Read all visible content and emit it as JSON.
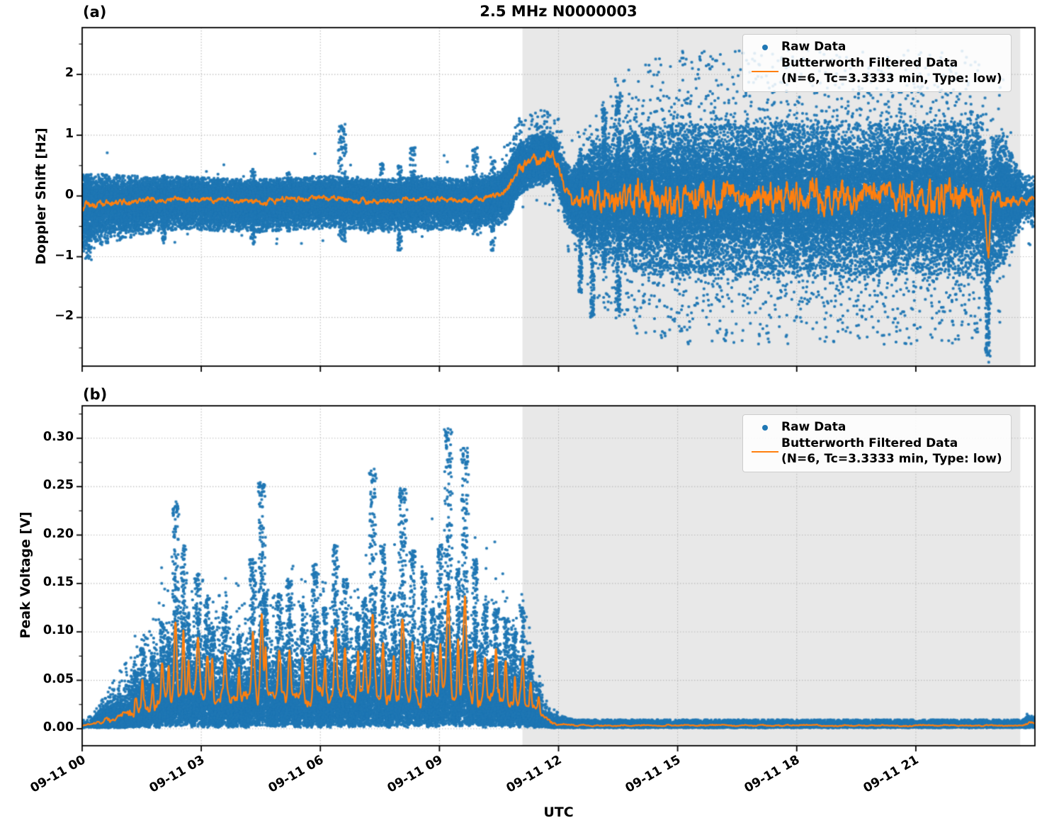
{
  "title": "2.5 MHz N0000003",
  "xlabel": "UTC",
  "colors": {
    "raw": "#1f77b4",
    "filtered": "#ff7f0e",
    "shade": "#e8e8e8",
    "grid": "#b8b8b8",
    "spine": "#000000"
  },
  "legend": {
    "raw_label": "Raw Data",
    "filtered_label_line1": "Butterworth Filtered Data",
    "filtered_label_line2": "(N=6, Tc=3.3333 min, Type: low)"
  },
  "chart_data": [
    {
      "panel": "(a)",
      "type": "scatter",
      "ylabel": "Doppler Shift [Hz]",
      "ylim": [
        -2.8,
        2.77
      ],
      "yticks": [
        2,
        1,
        0,
        -1,
        -2
      ],
      "ytick_labels": [
        "2",
        "1",
        "0",
        "−1",
        "−2"
      ],
      "y_minor_step": 0.5,
      "x_hours_range": [
        0,
        24
      ],
      "xtick_hours": [
        0,
        3,
        6,
        9,
        12,
        15,
        18,
        21
      ],
      "xtick_labels": [
        "09-11 00",
        "09-11 03",
        "09-11 06",
        "09-11 09",
        "09-11 12",
        "09-11 15",
        "09-11 18",
        "09-11 21"
      ],
      "shade_hours": [
        11.09,
        23.63
      ],
      "grid": true,
      "raw_model": {
        "center_pts": [
          [
            0,
            -0.17
          ],
          [
            0.4,
            -0.13
          ],
          [
            1.2,
            -0.09
          ],
          [
            2.5,
            -0.05
          ],
          [
            3.5,
            -0.08
          ],
          [
            4.5,
            -0.1
          ],
          [
            5.5,
            -0.05
          ],
          [
            6.5,
            -0.04
          ],
          [
            7.5,
            -0.1
          ],
          [
            8.5,
            -0.05
          ],
          [
            9.5,
            -0.08
          ],
          [
            10.3,
            -0.03
          ],
          [
            10.7,
            0.08
          ],
          [
            11.0,
            0.45
          ],
          [
            11.3,
            0.58
          ],
          [
            11.6,
            0.62
          ],
          [
            11.85,
            0.65
          ],
          [
            12.0,
            0.45
          ],
          [
            12.15,
            0.1
          ],
          [
            12.3,
            -0.04
          ],
          [
            13,
            -0.03
          ],
          [
            22.7,
            -0.02
          ],
          [
            22.78,
            -0.5
          ],
          [
            22.83,
            -0.9
          ],
          [
            22.9,
            -0.15
          ],
          [
            23.0,
            -0.04
          ],
          [
            24,
            -0.06
          ]
        ],
        "spread_pts": [
          [
            0,
            0.24
          ],
          [
            1,
            0.2
          ],
          [
            2,
            0.17
          ],
          [
            10.4,
            0.17
          ],
          [
            10.8,
            0.19
          ],
          [
            12.0,
            0.19
          ],
          [
            12.35,
            0.24
          ],
          [
            12.9,
            0.38
          ],
          [
            13.8,
            0.5
          ],
          [
            15,
            0.55
          ],
          [
            22.3,
            0.55
          ],
          [
            23.2,
            0.48
          ],
          [
            23.55,
            0.25
          ],
          [
            23.8,
            0.18
          ],
          [
            24,
            0.21
          ]
        ],
        "skew_pts": [
          [
            0,
            0.45
          ],
          [
            2,
            0.35
          ],
          [
            10.5,
            0.3
          ],
          [
            10.9,
            0.05
          ],
          [
            12.1,
            0.05
          ],
          [
            12.5,
            0.05
          ],
          [
            24,
            0.05
          ]
        ],
        "outlier_p_pts": [
          [
            0,
            0.002
          ],
          [
            10.4,
            0.002
          ],
          [
            11,
            0.004
          ],
          [
            12.2,
            0.01
          ],
          [
            12.8,
            0.028
          ],
          [
            13.8,
            0.04
          ],
          [
            22.4,
            0.04
          ],
          [
            23.2,
            0.012
          ],
          [
            23.6,
            0.004
          ],
          [
            24,
            0.003
          ]
        ],
        "bump_tail_p_pts": [
          [
            10.6,
            0
          ],
          [
            10.9,
            0.03
          ],
          [
            12.0,
            0.03
          ],
          [
            12.2,
            0
          ]
        ],
        "events": [
          {
            "t": 0.15,
            "up": 0.35,
            "down": -1.05,
            "w": 0.08
          },
          {
            "t": 2.05,
            "up": 0.35,
            "down": -0.8,
            "w": 0.05
          },
          {
            "t": 4.3,
            "up": 0.45,
            "down": -0.8,
            "w": 0.06
          },
          {
            "t": 5.2,
            "up": 0.4,
            "down": -0.6,
            "w": 0.05
          },
          {
            "t": 6.55,
            "up": 1.18,
            "down": -0.75,
            "w": 0.1
          },
          {
            "t": 7.55,
            "up": 0.55,
            "down": -0.5,
            "w": 0.05
          },
          {
            "t": 8.0,
            "up": 0.5,
            "down": -0.9,
            "w": 0.05
          },
          {
            "t": 8.33,
            "up": 0.8,
            "down": -0.6,
            "w": 0.07
          },
          {
            "t": 9.9,
            "up": 0.8,
            "down": -0.7,
            "w": 0.07
          },
          {
            "t": 10.35,
            "up": 0.6,
            "down": -0.9,
            "w": 0.06
          },
          {
            "t": 12.55,
            "up": 0.8,
            "down": -1.6,
            "w": 0.04
          },
          {
            "t": 12.85,
            "up": 0.9,
            "down": -2.0,
            "w": 0.05
          },
          {
            "t": 13.15,
            "up": 1.5,
            "down": -1.2,
            "w": 0.05
          },
          {
            "t": 13.5,
            "up": 1.7,
            "down": -1.9,
            "w": 0.06
          },
          {
            "t": 22.8,
            "up": 0.4,
            "down": -2.65,
            "w": 0.05
          }
        ]
      },
      "filtered_model": {
        "amp_pts": [
          [
            0,
            0.09
          ],
          [
            1,
            0.055
          ],
          [
            10.5,
            0.055
          ],
          [
            10.9,
            0.1
          ],
          [
            12.0,
            0.1
          ],
          [
            12.5,
            0.14
          ],
          [
            13,
            0.27
          ],
          [
            14,
            0.31
          ],
          [
            22.4,
            0.29
          ],
          [
            23.1,
            0.17
          ],
          [
            23.6,
            0.1
          ],
          [
            24,
            0.08
          ]
        ]
      },
      "density": {
        "n_base": 20000,
        "extras": [
          [
            0.0,
            11.09,
            16000
          ],
          [
            12.2,
            23.63,
            22000
          ],
          [
            10.6,
            12.2,
            2500
          ]
        ]
      }
    },
    {
      "panel": "(b)",
      "type": "scatter",
      "ylabel": "Peak Voltage [V]",
      "ylim": [
        -0.0176,
        0.3335
      ],
      "yticks": [
        0.3,
        0.25,
        0.2,
        0.15,
        0.1,
        0.05,
        0.0
      ],
      "ytick_labels": [
        "0.30",
        "0.25",
        "0.20",
        "0.15",
        "0.10",
        "0.05",
        "0.00"
      ],
      "y_minor_step": 0.025,
      "x_hours_range": [
        0,
        24
      ],
      "xtick_hours": [
        0,
        3,
        6,
        9,
        12,
        15,
        18,
        21
      ],
      "xtick_labels": [
        "09-11 00",
        "09-11 03",
        "09-11 06",
        "09-11 09",
        "09-11 12",
        "09-11 15",
        "09-11 18",
        "09-11 21"
      ],
      "shade_hours": [
        11.09,
        23.63
      ],
      "grid": true,
      "raw_model": {
        "base_pts": [
          [
            0,
            0.002
          ],
          [
            0.25,
            0.003
          ],
          [
            0.6,
            0.008
          ],
          [
            1.0,
            0.014
          ],
          [
            1.6,
            0.02
          ],
          [
            2.2,
            0.028
          ],
          [
            3,
            0.03
          ],
          [
            10.6,
            0.03
          ],
          [
            11.2,
            0.022
          ],
          [
            11.5,
            0.012
          ],
          [
            11.8,
            0.005
          ],
          [
            12.1,
            0.0028
          ],
          [
            12.4,
            0.002
          ],
          [
            23.7,
            0.002
          ],
          [
            23.85,
            0.004
          ],
          [
            24,
            0.0035
          ]
        ],
        "hw_pts": [
          [
            0,
            0.0012
          ],
          [
            0.4,
            0.004
          ],
          [
            1,
            0.009
          ],
          [
            1.8,
            0.016
          ],
          [
            2.5,
            0.02
          ],
          [
            10.6,
            0.02
          ],
          [
            11.2,
            0.014
          ],
          [
            11.6,
            0.007
          ],
          [
            12,
            0.002
          ],
          [
            12.4,
            0.0012
          ],
          [
            23.7,
            0.001
          ],
          [
            23.85,
            0.0022
          ],
          [
            24,
            0.002
          ]
        ],
        "mid_halo": {
          "t0": 1.2,
          "t1": 11.4,
          "p": 0.15
        },
        "events": [
          {
            "t": 1.35,
            "amp": 0.06,
            "w": 0.04
          },
          {
            "t": 1.52,
            "amp": 0.085,
            "w": 0.04
          },
          {
            "t": 1.78,
            "amp": 0.075,
            "w": 0.04
          },
          {
            "t": 2.02,
            "amp": 0.11,
            "w": 0.05
          },
          {
            "t": 2.18,
            "amp": 0.095,
            "w": 0.04
          },
          {
            "t": 2.35,
            "amp": 0.235,
            "w": 0.06
          },
          {
            "t": 2.55,
            "amp": 0.19,
            "w": 0.05
          },
          {
            "t": 2.68,
            "amp": 0.12,
            "w": 0.04
          },
          {
            "t": 2.92,
            "amp": 0.16,
            "w": 0.06
          },
          {
            "t": 3.15,
            "amp": 0.135,
            "w": 0.05
          },
          {
            "t": 3.28,
            "amp": 0.1,
            "w": 0.04
          },
          {
            "t": 3.6,
            "amp": 0.12,
            "w": 0.06
          },
          {
            "t": 3.95,
            "amp": 0.095,
            "w": 0.04
          },
          {
            "t": 4.3,
            "amp": 0.175,
            "w": 0.06
          },
          {
            "t": 4.52,
            "amp": 0.255,
            "w": 0.06
          },
          {
            "t": 4.62,
            "amp": 0.14,
            "w": 0.04
          },
          {
            "t": 4.97,
            "amp": 0.14,
            "w": 0.05
          },
          {
            "t": 5.22,
            "amp": 0.155,
            "w": 0.06
          },
          {
            "t": 5.55,
            "amp": 0.13,
            "w": 0.04
          },
          {
            "t": 5.85,
            "amp": 0.17,
            "w": 0.06
          },
          {
            "t": 6.12,
            "amp": 0.125,
            "w": 0.04
          },
          {
            "t": 6.38,
            "amp": 0.19,
            "w": 0.06
          },
          {
            "t": 6.62,
            "amp": 0.155,
            "w": 0.05
          },
          {
            "t": 6.95,
            "amp": 0.12,
            "w": 0.04
          },
          {
            "t": 7.12,
            "amp": 0.135,
            "w": 0.05
          },
          {
            "t": 7.32,
            "amp": 0.27,
            "w": 0.07
          },
          {
            "t": 7.58,
            "amp": 0.19,
            "w": 0.05
          },
          {
            "t": 7.85,
            "amp": 0.14,
            "w": 0.04
          },
          {
            "t": 8.07,
            "amp": 0.25,
            "w": 0.07
          },
          {
            "t": 8.32,
            "amp": 0.185,
            "w": 0.05
          },
          {
            "t": 8.6,
            "amp": 0.165,
            "w": 0.05
          },
          {
            "t": 8.83,
            "amp": 0.125,
            "w": 0.04
          },
          {
            "t": 9.02,
            "amp": 0.19,
            "w": 0.05
          },
          {
            "t": 9.22,
            "amp": 0.31,
            "w": 0.07
          },
          {
            "t": 9.47,
            "amp": 0.165,
            "w": 0.04
          },
          {
            "t": 9.64,
            "amp": 0.29,
            "w": 0.07
          },
          {
            "t": 9.9,
            "amp": 0.175,
            "w": 0.05
          },
          {
            "t": 10.15,
            "amp": 0.13,
            "w": 0.05
          },
          {
            "t": 10.42,
            "amp": 0.125,
            "w": 0.05
          },
          {
            "t": 10.67,
            "amp": 0.115,
            "w": 0.05
          },
          {
            "t": 10.9,
            "amp": 0.1,
            "w": 0.04
          },
          {
            "t": 11.1,
            "amp": 0.125,
            "w": 0.05
          },
          {
            "t": 11.3,
            "amp": 0.075,
            "w": 0.04
          },
          {
            "t": 11.5,
            "amp": 0.045,
            "w": 0.04
          }
        ]
      },
      "filtered_model": {
        "env_factor": 0.33
      },
      "density": {
        "n_base": 12000,
        "extras": [
          [
            0.3,
            11.6,
            22000
          ],
          [
            11.6,
            24.0,
            7000
          ]
        ]
      }
    }
  ]
}
